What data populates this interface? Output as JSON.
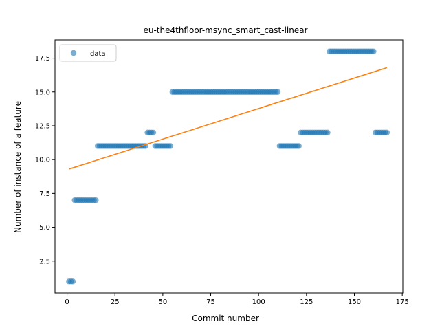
{
  "chart_data": {
    "type": "scatter",
    "title": "eu-the4thfloor-msync_smart_cast-linear",
    "xlabel": "Commit number",
    "ylabel": "Number of instance of a feature",
    "xlim": [
      -6.3,
      175.3
    ],
    "ylim": [
      0.15,
      18.85
    ],
    "xticks": [
      0,
      25,
      50,
      75,
      100,
      125,
      150,
      175
    ],
    "yticks": [
      2.5,
      5.0,
      7.5,
      10.0,
      12.5,
      15.0,
      17.5
    ],
    "ytick_labels": [
      "2.5",
      "5.0",
      "7.5",
      "10.0",
      "12.5",
      "15.0",
      "17.5"
    ],
    "legend": {
      "position": "top-left",
      "entries": [
        "data"
      ]
    },
    "grid": false,
    "colors": {
      "data": "#1f77b4",
      "fit": "#ff7f0e"
    },
    "series": [
      {
        "name": "data",
        "kind": "points",
        "segments": [
          {
            "x_from": 1,
            "x_to": 3,
            "y": 1
          },
          {
            "x_from": 4,
            "x_to": 15,
            "y": 7
          },
          {
            "x_from": 16,
            "x_to": 41,
            "y": 11
          },
          {
            "x_from": 42,
            "x_to": 45,
            "y": 12
          },
          {
            "x_from": 46,
            "x_to": 54,
            "y": 11
          },
          {
            "x_from": 55,
            "x_to": 110,
            "y": 15
          },
          {
            "x_from": 111,
            "x_to": 121,
            "y": 11
          },
          {
            "x_from": 122,
            "x_to": 136,
            "y": 12
          },
          {
            "x_from": 137,
            "x_to": 160,
            "y": 18
          },
          {
            "x_from": 161,
            "x_to": 167,
            "y": 12
          }
        ]
      },
      {
        "kind": "line",
        "x": [
          1,
          167
        ],
        "y": [
          9.3,
          16.8
        ]
      }
    ]
  }
}
